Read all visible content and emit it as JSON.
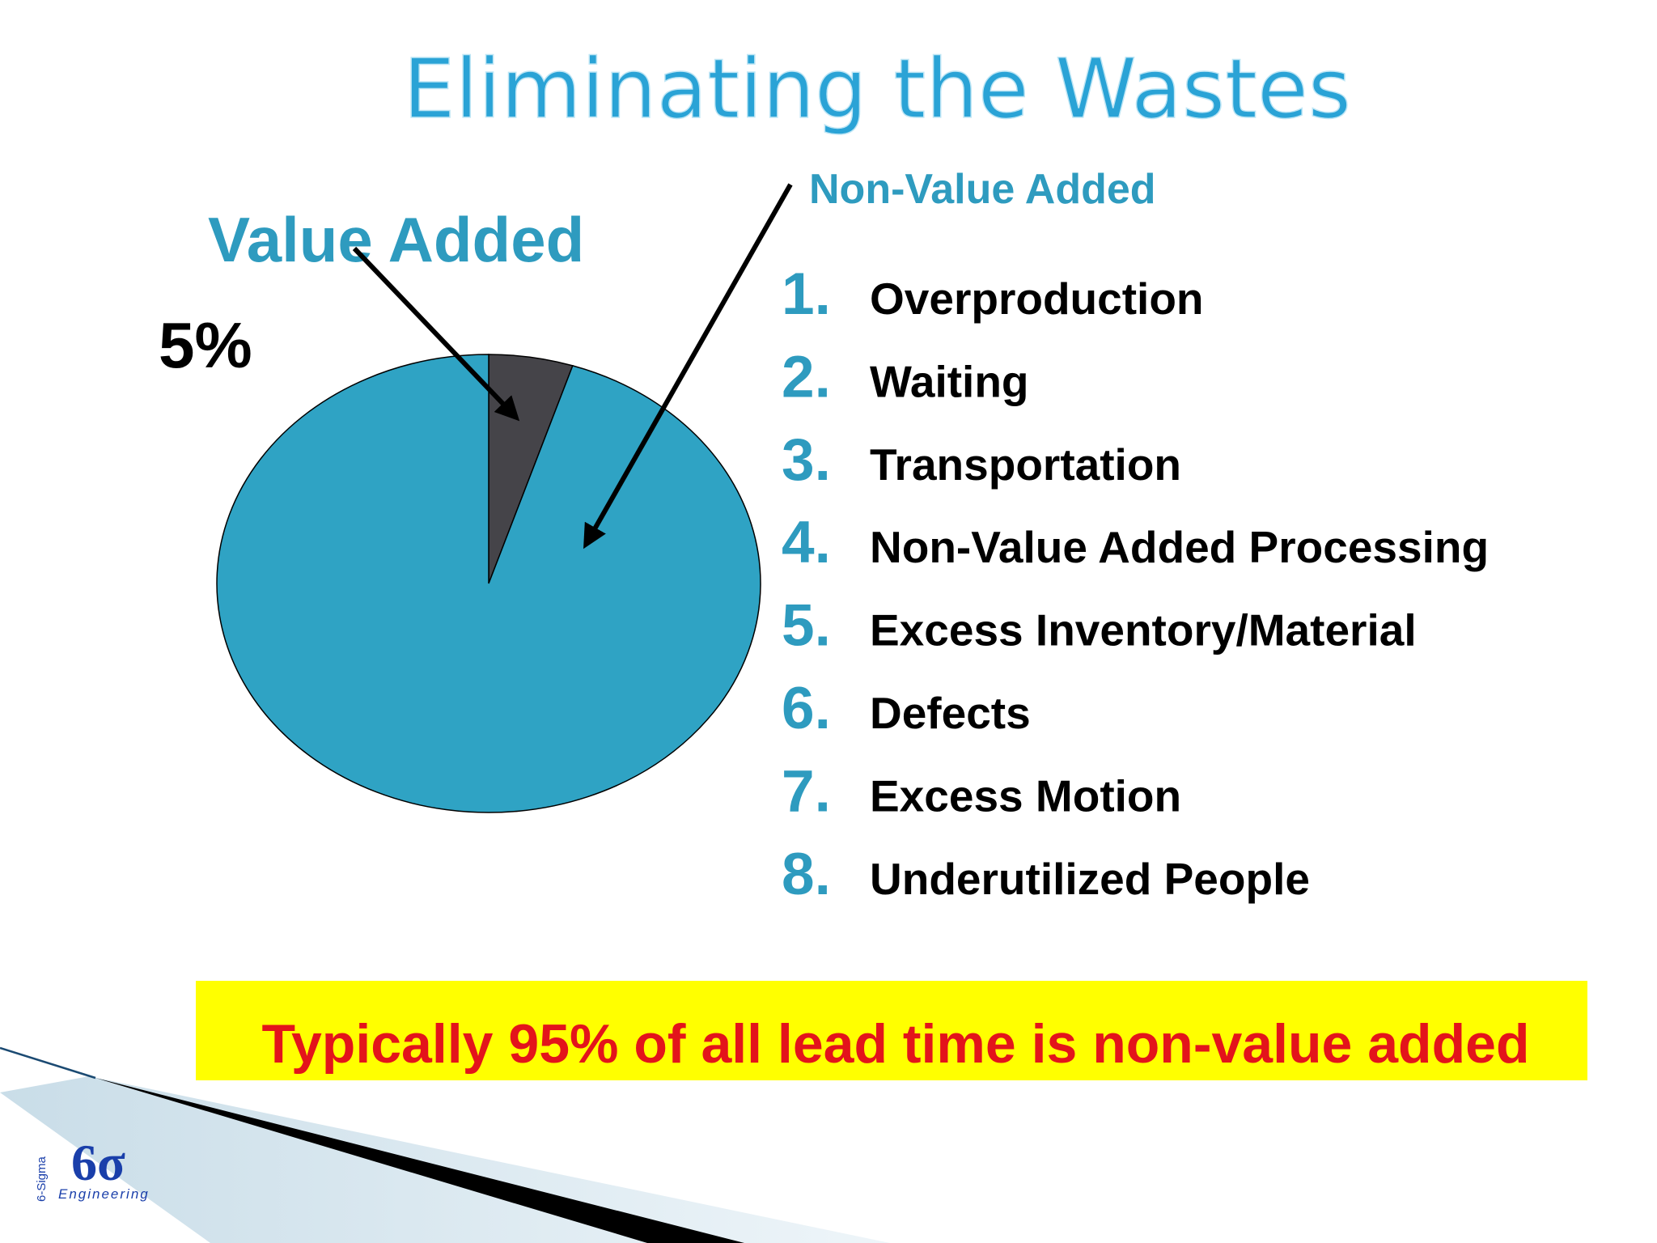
{
  "chart_data": {
    "type": "pie",
    "title": "Eliminating the Wastes",
    "categories": [
      "Value Added",
      "Non-Value Added"
    ],
    "values": [
      5,
      95
    ],
    "value_labels": [
      "5%",
      null
    ],
    "colors": [
      "#454449",
      "#2fa3c4"
    ]
  },
  "waste_list": [
    {
      "number": "1.",
      "label": "Overproduction"
    },
    {
      "number": "2.",
      "label": "Waiting"
    },
    {
      "number": "3.",
      "label": "Transportation"
    },
    {
      "number": "4.",
      "label": "Non-Value Added Processing"
    },
    {
      "number": "5.",
      "label": "Excess Inventory/Material"
    },
    {
      "number": "6.",
      "label": "Defects"
    },
    {
      "number": "7.",
      "label": "Excess Motion"
    },
    {
      "number": "8.",
      "label": "Underutilized People"
    }
  ],
  "banner": "Typically 95% of all lead time is non-value added",
  "logo": {
    "mark": "6σ",
    "sub": "Engineering",
    "side": "6-Sigma"
  }
}
